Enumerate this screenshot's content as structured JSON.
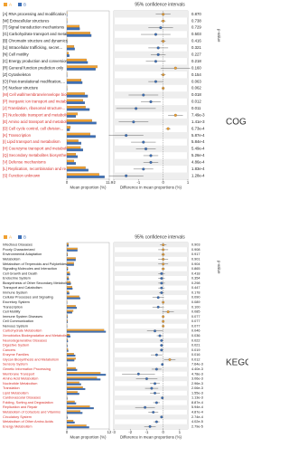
{
  "chart_data": [
    {
      "type": "extended_error_bar",
      "title": "95% confidence intervals",
      "side_label": "COG",
      "xlabel": "Mean proportion (%)",
      "diff_label": "Difference in mean proportions (%)",
      "p_label": "p-value",
      "categories": [
        "[A] RNA processing and modification",
        "[W] Extracellular structures",
        "[T] Signal transduction mechanisms",
        "[G] Carbohydrate transport and metabolis...",
        "[B] Chromatin structure and dynamics",
        "[U] Intracellular trafficking, secret...",
        "[N] Cell motility",
        "[C] Energy production and conversion",
        "[R] General function prediction only",
        "[Z] Cytoskeleton",
        "[O] Post-translational modification,...",
        "[Y] Nuclear structure",
        "[M] Cell wall/membrane/envelope bioge...",
        "[P] Inorganic ion transport and metab...",
        "[J] Translation, ribosomal structure...",
        "[F] Nucleotide transport and metabolism",
        "[E] Amino acid transport and metabolism",
        "[D] Cell cycle control, cell division...",
        "[K] Transcription",
        "[I] Lipid transport and metabolism",
        "[H] Coenzyme transport and metabolism",
        "[Q] Secondary metabolites biosynthesi...",
        "[V] Defense mechanisms",
        "[L] Replication, recombination and re...",
        "[S] Function unknown"
      ],
      "series": [
        {
          "name": "A",
          "color": "#f0a030",
          "values": [
            0.1,
            0.1,
            3.5,
            6.5,
            0.1,
            2.0,
            0.5,
            5.5,
            8.5,
            0.1,
            4.0,
            0.1,
            5.0,
            4.5,
            5.2,
            3.0,
            7.0,
            1.0,
            6.5,
            3.2,
            3.8,
            2.5,
            2.0,
            5.2,
            9.0
          ]
        },
        {
          "name": "B",
          "color": "#3d6fb6",
          "values": [
            0.1,
            0.1,
            3.6,
            6.8,
            0.1,
            2.2,
            0.7,
            5.8,
            8.0,
            0.1,
            4.3,
            0.1,
            5.8,
            5.0,
            6.3,
            2.5,
            8.2,
            0.8,
            8.0,
            4.0,
            4.5,
            3.0,
            2.5,
            6.0,
            10.5
          ]
        }
      ],
      "difference": {
        "values": [
          0,
          0,
          -0.1,
          -0.3,
          0,
          -0.2,
          -0.2,
          -0.3,
          0.5,
          0,
          -0.3,
          0,
          -0.8,
          -0.5,
          -1.1,
          0.5,
          -1.2,
          0.2,
          -1.5,
          -0.8,
          -0.7,
          -0.5,
          -0.5,
          -0.8,
          -1.5
        ],
        "errors": [
          0.3,
          0.1,
          0.5,
          0.6,
          0.1,
          0.4,
          0.3,
          0.4,
          0.6,
          0.1,
          0.3,
          0.05,
          0.6,
          0.4,
          0.8,
          0.3,
          0.6,
          0.1,
          0.7,
          0.5,
          0.4,
          0.3,
          0.3,
          0.4,
          0.7
        ]
      },
      "p_values": [
        "0.870",
        "0.738",
        "0.729",
        "0.503",
        "0.416",
        "0.321",
        "0.227",
        "0.218",
        "0.160",
        "0.154",
        "0.063",
        "0.062",
        "0.018",
        "0.012",
        "0.011",
        "7.49e-3",
        "1.41e-3",
        "6.73e-4",
        "5.87e-4",
        "5.84e-4",
        "5.49e-4",
        "5.26e-4",
        "4.86e-4",
        "1.83e-4",
        "1.28e-4"
      ],
      "highlight_color": "#d9302b",
      "xlim": [
        0,
        11.8
      ],
      "xticks": [
        0,
        11.8
      ],
      "difflim": [
        -2,
        1
      ],
      "diffticks": [
        -2,
        -1,
        0,
        1
      ]
    },
    {
      "type": "extended_error_bar",
      "title": "95% confidence intervals",
      "side_label": "KEGG",
      "xlabel": "Mean proportion (%)",
      "diff_label": "Difference in mean proportions (%)",
      "p_label": "p-value",
      "categories": [
        "Infectious Diseases",
        "Poorly Characterized",
        "Environmental Adaptation",
        "Metabolism",
        "Metabolism of Terpenoids and Polyketides",
        "Signaling Molecules and Interaction",
        "Cell Growth and Death",
        "Endocrine System",
        "Biosynthesis of Other Secondary Metabolites",
        "Transport and Catabolism",
        "Immune System",
        "Cellular Processes and Signaling",
        "Excretory System",
        "Transcription",
        "Cell Motility",
        "Immune System Diseases",
        "Cell Communication",
        "Nervous System",
        "Carbohydrate Metabolism",
        "Xenobiotics Biodegradation and Metabolism",
        "Neurodegenerative Diseases",
        "Digestive System",
        "Cancers",
        "Enzyme Families",
        "Glycan Biosynthesis and Metabolism",
        "Sensory System",
        "Genetic Information Processing",
        "Membrane Transport",
        "Amino Acid Metabolism",
        "Nucleotide Metabolism",
        "Translation",
        "Lipid Metabolism",
        "Cardiovascular Diseases",
        "Folding, Sorting and Degradation",
        "Replication and Repair",
        "Metabolism of Cofactors and Vitamins",
        "Circulatory System",
        "Metabolism of Other Amino Acids",
        "Energy Metabolism"
      ],
      "series": [
        {
          "name": "A",
          "color": "#f0a030",
          "values": [
            0.5,
            3.0,
            0.2,
            2.5,
            2.0,
            0.3,
            0.8,
            0.5,
            1.0,
            1.5,
            0.6,
            3.5,
            0.1,
            2.5,
            1.8,
            0.2,
            0.2,
            0.1,
            10.5,
            0.8,
            0.2,
            0.1,
            0.3,
            2.0,
            2.5,
            0.1,
            2.5,
            9.5,
            8.5,
            3.5,
            4.5,
            3.0,
            0.1,
            2.2,
            6.5,
            3.8,
            0.1,
            1.8,
            5.5
          ]
        },
        {
          "name": "B",
          "color": "#3d6fb6",
          "values": [
            0.5,
            3.0,
            0.2,
            2.5,
            2.0,
            0.3,
            0.9,
            0.6,
            1.1,
            1.6,
            0.7,
            3.8,
            0.1,
            2.8,
            1.5,
            0.2,
            0.2,
            0.1,
            11.0,
            1.0,
            0.3,
            0.2,
            0.4,
            2.4,
            2.1,
            0.15,
            2.9,
            11.0,
            9.5,
            4.0,
            5.2,
            3.5,
            0.15,
            2.6,
            7.6,
            4.4,
            0.2,
            2.2,
            6.3
          ]
        }
      ],
      "difference": {
        "values": [
          0,
          0,
          0,
          0,
          0,
          0,
          -0.1,
          -0.1,
          -0.1,
          -0.1,
          -0.1,
          -0.3,
          0,
          -0.3,
          0.3,
          0,
          0,
          0,
          -0.5,
          -0.2,
          -0.1,
          -0.1,
          -0.1,
          -0.4,
          0.4,
          -0.05,
          -0.4,
          -1.5,
          -1.0,
          -0.5,
          -0.7,
          -0.5,
          -0.05,
          -0.4,
          -1.1,
          -0.6,
          -0.1,
          -0.4,
          -0.8
        ],
        "errors": [
          0.2,
          0.3,
          0.1,
          0.3,
          0.3,
          0.1,
          0.2,
          0.2,
          0.2,
          0.2,
          0.15,
          0.35,
          0.03,
          0.35,
          0.35,
          0.03,
          0.03,
          0.03,
          0.48,
          0.19,
          0.09,
          0.09,
          0.09,
          0.35,
          0.35,
          0.04,
          0.3,
          1.0,
          0.65,
          0.3,
          0.4,
          0.3,
          0.03,
          0.2,
          0.6,
          0.3,
          0.05,
          0.18,
          0.35
        ]
      },
      "p_values": [
        "0.903",
        "0.908",
        "0.917",
        "0.901",
        "0.904",
        "0.865",
        "0.418",
        "0.354",
        "0.298",
        "0.447",
        "0.178",
        "0.090",
        "0.089",
        "0.100",
        "0.085",
        "0.077",
        "0.077",
        "0.077",
        "0.046",
        "0.036",
        "0.022",
        "0.021",
        "0.019",
        "0.016",
        "0.012",
        "7.64e-3",
        "4.40e-3",
        "4.78e-3",
        "3.06e-3",
        "2.96e-3",
        "2.06e-3",
        "1.55e-3",
        "1.13e-3",
        "8.87e-4",
        "5.94e-4",
        "4.87e-4",
        "2.74e-4",
        "4.02e-5",
        "2.79e-5"
      ],
      "highlight_color": "#d9302b",
      "xlim": [
        0,
        12
      ],
      "xticks": [
        0,
        12
      ],
      "difflim": [
        -3,
        1.5
      ],
      "diffticks": [
        -3,
        -2,
        -1,
        0,
        1
      ]
    }
  ]
}
